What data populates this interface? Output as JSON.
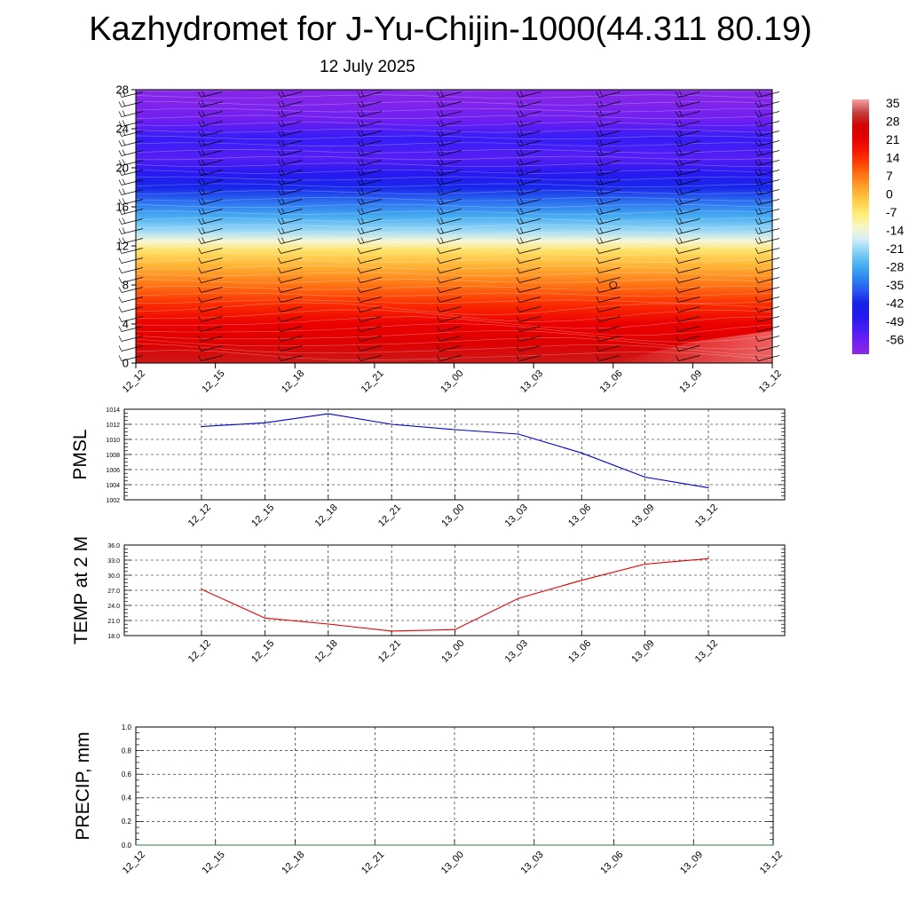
{
  "title": "Kazhydromet for J-Yu-Chijin-1000(44.311 80.19)",
  "subtitle": "12 July 2025",
  "chart_data": [
    {
      "type": "heatmap",
      "x_labels": [
        "12_12",
        "12_15",
        "12_18",
        "12_21",
        "13_00",
        "13_03",
        "13_06",
        "13_09",
        "13_12"
      ],
      "y_ticks": [
        0,
        4,
        8,
        12,
        16,
        20,
        24,
        28
      ],
      "ylim": [
        0,
        28
      ],
      "colorbar_labels": [
        "35",
        "28",
        "21",
        "14",
        "7",
        "0",
        "-7",
        "-14",
        "-21",
        "-28",
        "-35",
        "-42",
        "-49",
        "-56"
      ],
      "colorbar_range": [
        -60,
        38
      ],
      "colors": {
        "cold_max": "#7a1ff0",
        "mid": "#ffffa8",
        "warm_max": "#c40000",
        "surface_light": "#f07070"
      },
      "marker_label": "O"
    },
    {
      "type": "line",
      "ylabel": "PMSL",
      "x": [
        "12_12",
        "12_15",
        "12_18",
        "12_21",
        "13_00",
        "13_03",
        "13_06",
        "13_09",
        "13_12"
      ],
      "series": [
        {
          "values": [
            1011.7,
            1012.2,
            1013.4,
            1012.0,
            1011.3,
            1010.7,
            1008.2,
            1005.0,
            1003.6
          ]
        }
      ],
      "y_ticks": [
        "1002",
        "1004",
        "1006",
        "1008",
        "1010",
        "1012",
        "1014"
      ],
      "ylim": [
        1002,
        1014
      ],
      "color": "#0000cc"
    },
    {
      "type": "line",
      "ylabel": "TEMP at 2 M",
      "x": [
        "12_12",
        "12_15",
        "12_18",
        "12_21",
        "13_00",
        "13_03",
        "13_06",
        "13_09",
        "13_12"
      ],
      "series": [
        {
          "values": [
            27.2,
            21.5,
            20.3,
            18.9,
            19.2,
            25.4,
            29.0,
            32.2,
            33.3
          ]
        }
      ],
      "y_ticks": [
        "18.0",
        "21.0",
        "24.0",
        "27.0",
        "30.0",
        "33.0",
        "36.0"
      ],
      "ylim": [
        18,
        36
      ],
      "color": "#e00000"
    },
    {
      "type": "line",
      "ylabel": "PRECIP, mm",
      "x": [
        "12_12",
        "12_15",
        "12_18",
        "12_21",
        "13_00",
        "13_03",
        "13_06",
        "13_09",
        "13_12"
      ],
      "series": [
        {
          "values": [
            0,
            0,
            0,
            0,
            0,
            0,
            0,
            0,
            0
          ]
        }
      ],
      "y_ticks": [
        "0.0",
        "0.2",
        "0.4",
        "0.6",
        "0.8",
        "1.0"
      ],
      "ylim": [
        0,
        1
      ],
      "color": "#2e7d32"
    }
  ]
}
